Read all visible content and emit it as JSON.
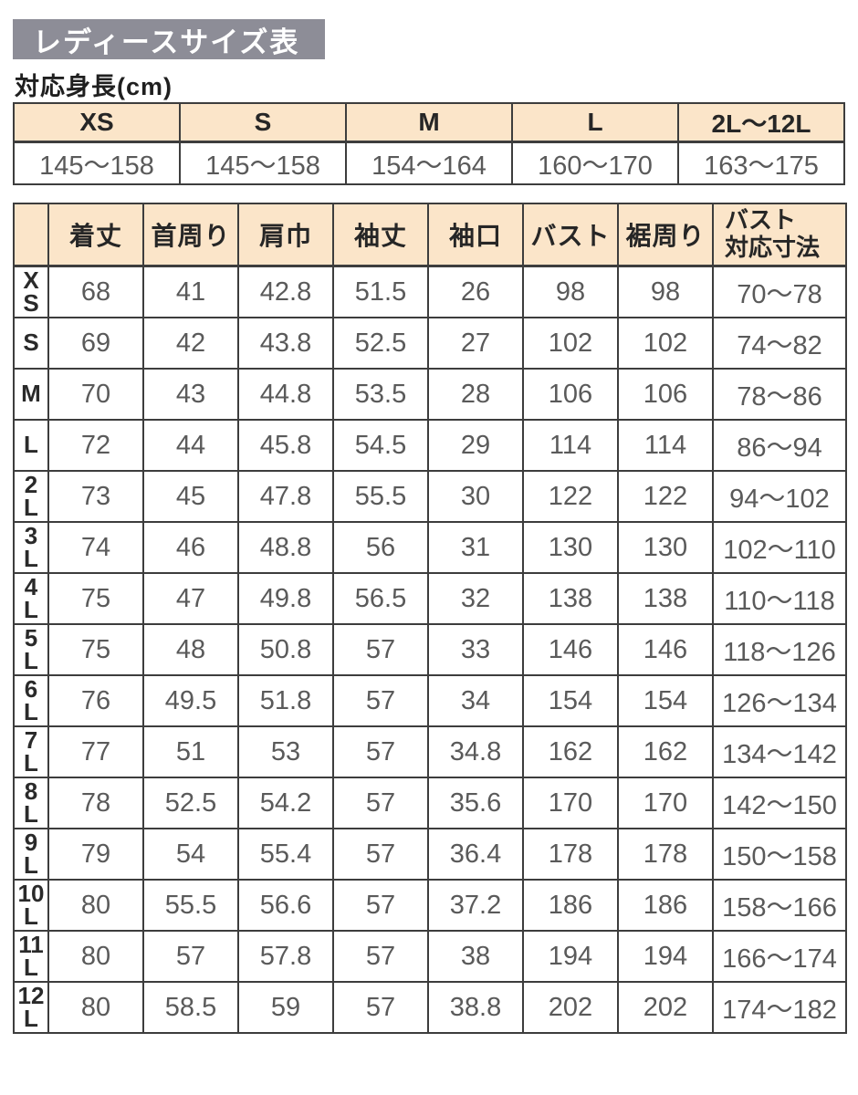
{
  "page": {
    "title": "レディースサイズ表",
    "subtitle": "対応身長(cm)"
  },
  "colors": {
    "title_bar_bg": "#8d8d97",
    "title_text": "#ffffff",
    "header_bg": "#fbe5c9",
    "border": "#3d3d3d",
    "header_text": "#262626",
    "value_text": "#5a5a5a"
  },
  "height_table": {
    "columns": [
      "XS",
      "S",
      "M",
      "L",
      "2L〜12L"
    ],
    "values": [
      "145〜158",
      "145〜158",
      "154〜164",
      "160〜170",
      "163〜175"
    ]
  },
  "size_table": {
    "corner_label": "",
    "columns": [
      "着丈",
      "首周り",
      "肩巾",
      "袖丈",
      "袖口",
      "バスト",
      "裾周り",
      "バスト\n対応寸法"
    ],
    "rows": [
      {
        "label": "X\nS",
        "values": [
          "68",
          "41",
          "42.8",
          "51.5",
          "26",
          "98",
          "98",
          "70〜78"
        ]
      },
      {
        "label": "S",
        "values": [
          "69",
          "42",
          "43.8",
          "52.5",
          "27",
          "102",
          "102",
          "74〜82"
        ]
      },
      {
        "label": "M",
        "values": [
          "70",
          "43",
          "44.8",
          "53.5",
          "28",
          "106",
          "106",
          "78〜86"
        ]
      },
      {
        "label": "L",
        "values": [
          "72",
          "44",
          "45.8",
          "54.5",
          "29",
          "114",
          "114",
          "86〜94"
        ]
      },
      {
        "label": "2\nL",
        "values": [
          "73",
          "45",
          "47.8",
          "55.5",
          "30",
          "122",
          "122",
          "94〜102"
        ]
      },
      {
        "label": "3\nL",
        "values": [
          "74",
          "46",
          "48.8",
          "56",
          "31",
          "130",
          "130",
          "102〜110"
        ]
      },
      {
        "label": "4\nL",
        "values": [
          "75",
          "47",
          "49.8",
          "56.5",
          "32",
          "138",
          "138",
          "110〜118"
        ]
      },
      {
        "label": "5\nL",
        "values": [
          "75",
          "48",
          "50.8",
          "57",
          "33",
          "146",
          "146",
          "118〜126"
        ]
      },
      {
        "label": "6\nL",
        "values": [
          "76",
          "49.5",
          "51.8",
          "57",
          "34",
          "154",
          "154",
          "126〜134"
        ]
      },
      {
        "label": "7\nL",
        "values": [
          "77",
          "51",
          "53",
          "57",
          "34.8",
          "162",
          "162",
          "134〜142"
        ]
      },
      {
        "label": "8\nL",
        "values": [
          "78",
          "52.5",
          "54.2",
          "57",
          "35.6",
          "170",
          "170",
          "142〜150"
        ]
      },
      {
        "label": "9\nL",
        "values": [
          "79",
          "54",
          "55.4",
          "57",
          "36.4",
          "178",
          "178",
          "150〜158"
        ]
      },
      {
        "label": "10\nL",
        "values": [
          "80",
          "55.5",
          "56.6",
          "57",
          "37.2",
          "186",
          "186",
          "158〜166"
        ]
      },
      {
        "label": "11\nL",
        "values": [
          "80",
          "57",
          "57.8",
          "57",
          "38",
          "194",
          "194",
          "166〜174"
        ]
      },
      {
        "label": "12\nL",
        "values": [
          "80",
          "58.5",
          "59",
          "57",
          "38.8",
          "202",
          "202",
          "174〜182"
        ]
      }
    ]
  }
}
